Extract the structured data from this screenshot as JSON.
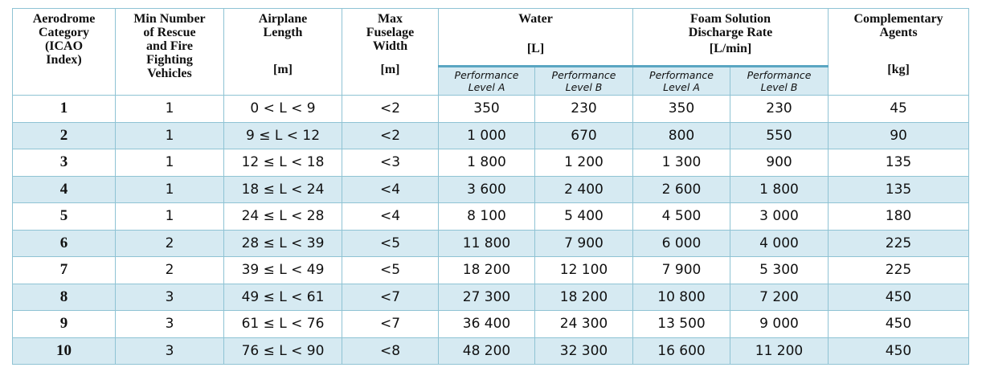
{
  "table": {
    "header": [
      {
        "label": "Aerodrome\nCategory\n(ICAO\nIndex)"
      },
      {
        "label": "Min Number\nof Rescue\nand Fire\nFighting\nVehicles"
      },
      {
        "label": "Airplane\nLength",
        "unit": "[m]"
      },
      {
        "label": "Max\nFuselage\nWidth",
        "unit": "[m]"
      },
      {
        "label": "Water",
        "unit": "[L]",
        "sub": [
          "Performance\nLevel A",
          "Performance\nLevel B"
        ]
      },
      {
        "label": "Foam Solution\nDischarge Rate",
        "unit": "[L/min]",
        "sub": [
          "Performance\nLevel A",
          "Performance\nLevel B"
        ]
      },
      {
        "label": "Complementary\nAgents",
        "unit": "[kg]"
      }
    ],
    "rows": [
      [
        "1",
        "1",
        "0 < L < 9",
        "<2",
        "350",
        "230",
        "350",
        "230",
        "45"
      ],
      [
        "2",
        "1",
        "9 ≤ L < 12",
        "<2",
        "1 000",
        "670",
        "800",
        "550",
        "90"
      ],
      [
        "3",
        "1",
        "12 ≤ L < 18",
        "<3",
        "1 800",
        "1 200",
        "1 300",
        "900",
        "135"
      ],
      [
        "4",
        "1",
        "18 ≤ L < 24",
        "<4",
        "3 600",
        "2 400",
        "2 600",
        "1 800",
        "135"
      ],
      [
        "5",
        "1",
        "24 ≤ L < 28",
        "<4",
        "8 100",
        "5 400",
        "4 500",
        "3 000",
        "180"
      ],
      [
        "6",
        "2",
        "28 ≤ L < 39",
        "<5",
        "11 800",
        "7 900",
        "6 000",
        "4 000",
        "225"
      ],
      [
        "7",
        "2",
        "39 ≤ L < 49",
        "<5",
        "18 200",
        "12 100",
        "7 900",
        "5 300",
        "225"
      ],
      [
        "8",
        "3",
        "49 ≤ L < 61",
        "<7",
        "27 300",
        "18 200",
        "10 800",
        "7 200",
        "450"
      ],
      [
        "9",
        "3",
        "61 ≤ L < 76",
        "<7",
        "36 400",
        "24 300",
        "13 500",
        "9 000",
        "450"
      ],
      [
        "10",
        "3",
        "76 ≤ L < 90",
        "<8",
        "48 200",
        "32 300",
        "16 600",
        "11 200",
        "450"
      ]
    ]
  }
}
